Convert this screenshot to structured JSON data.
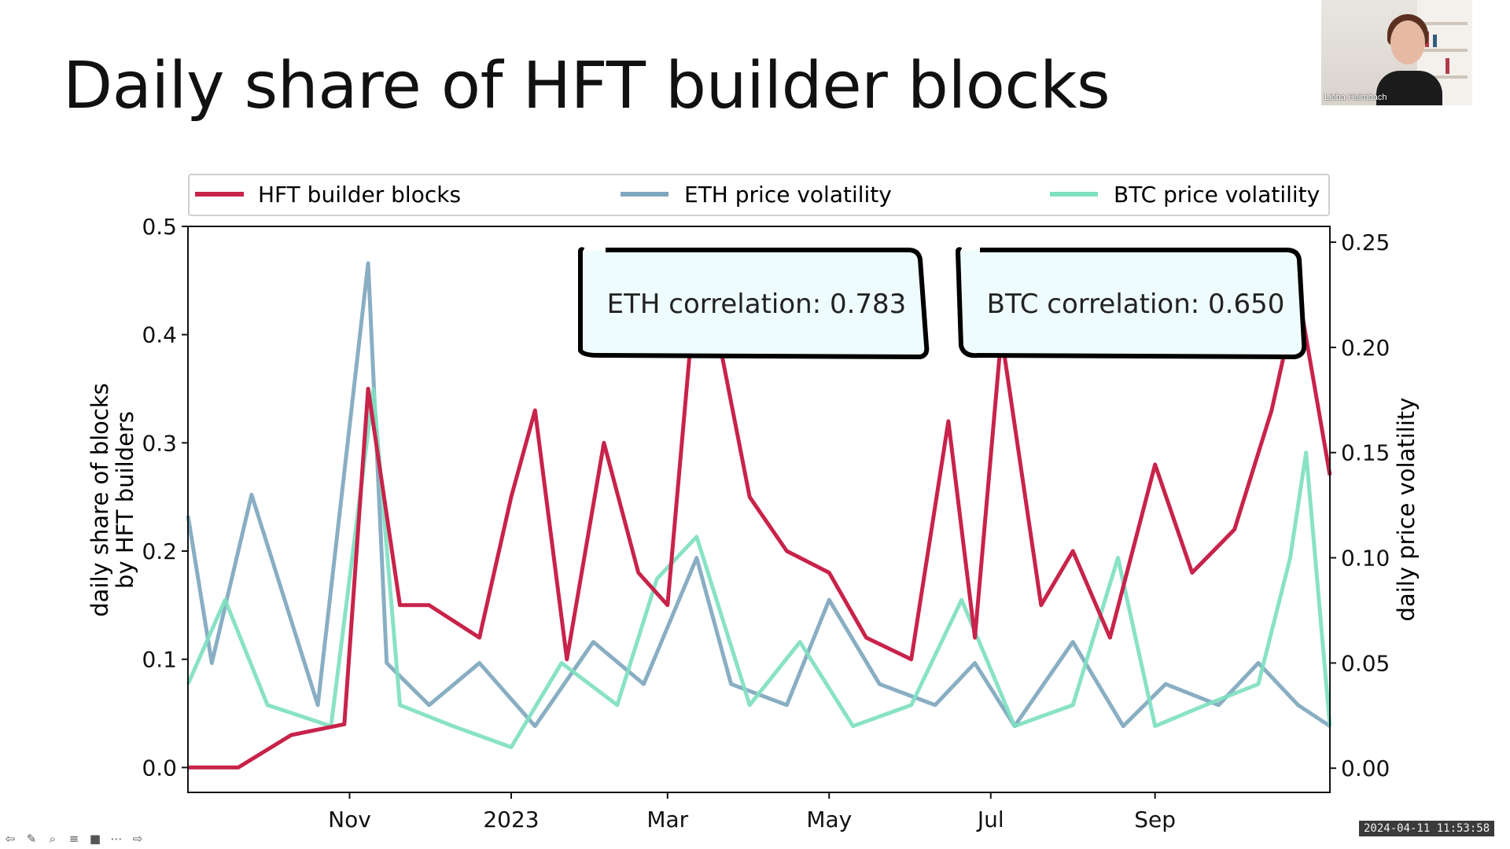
{
  "slide": {
    "title": "Daily share of HFT builder blocks"
  },
  "chart_data": {
    "type": "line",
    "x_ticks": [
      "Nov",
      "2023",
      "Mar",
      "May",
      "Jul",
      "Sep"
    ],
    "x_tick_dates": [
      "2022-11-01",
      "2023-01-01",
      "2023-03-01",
      "2023-05-01",
      "2023-07-01",
      "2023-09-01"
    ],
    "x_range": [
      "2022-09-01",
      "2023-11-06"
    ],
    "ylabel_left": "daily share of blocks by HFT builders",
    "ylabel_left_lines": [
      "daily share of blocks",
      "by HFT builders"
    ],
    "ylabel_right": "daily price volatility",
    "ylim_left": [
      -0.023,
      0.5
    ],
    "ylim_right": [
      -0.0115,
      0.2575
    ],
    "yticks_left": [
      "0.0",
      "0.1",
      "0.2",
      "0.3",
      "0.4",
      "0.5"
    ],
    "yticks_right": [
      "0.00",
      "0.05",
      "0.10",
      "0.15",
      "0.20",
      "0.25"
    ],
    "legend_position": "top, above plot",
    "grid": false,
    "series": [
      {
        "name": "HFT builder blocks",
        "axis": "left",
        "color": "#c8234a",
        "x": [
          "2022-09-01",
          "2022-09-20",
          "2022-10-10",
          "2022-10-30",
          "2022-11-08",
          "2022-11-20",
          "2022-12-01",
          "2022-12-20",
          "2023-01-01",
          "2023-01-10",
          "2023-01-22",
          "2023-02-05",
          "2023-02-18",
          "2023-03-01",
          "2023-03-10",
          "2023-03-20",
          "2023-04-01",
          "2023-04-15",
          "2023-05-01",
          "2023-05-15",
          "2023-06-01",
          "2023-06-15",
          "2023-06-25",
          "2023-07-05",
          "2023-07-20",
          "2023-08-01",
          "2023-08-15",
          "2023-09-01",
          "2023-09-15",
          "2023-10-01",
          "2023-10-15",
          "2023-10-25",
          "2023-11-06"
        ],
        "values": [
          0.0,
          0.0,
          0.03,
          0.04,
          0.35,
          0.15,
          0.15,
          0.12,
          0.25,
          0.33,
          0.1,
          0.3,
          0.18,
          0.15,
          0.4,
          0.4,
          0.25,
          0.2,
          0.18,
          0.12,
          0.1,
          0.32,
          0.12,
          0.4,
          0.15,
          0.2,
          0.12,
          0.28,
          0.18,
          0.22,
          0.33,
          0.44,
          0.27
        ]
      },
      {
        "name": "ETH price volatility",
        "axis": "right",
        "color": "#7fa7be",
        "x": [
          "2022-09-01",
          "2022-09-10",
          "2022-09-25",
          "2022-10-20",
          "2022-11-08",
          "2022-11-15",
          "2022-12-01",
          "2022-12-20",
          "2023-01-10",
          "2023-02-01",
          "2023-02-20",
          "2023-03-12",
          "2023-03-25",
          "2023-04-15",
          "2023-05-01",
          "2023-05-20",
          "2023-06-10",
          "2023-06-25",
          "2023-07-10",
          "2023-08-01",
          "2023-08-20",
          "2023-09-05",
          "2023-09-25",
          "2023-10-10",
          "2023-10-25",
          "2023-11-06"
        ],
        "values": [
          0.12,
          0.05,
          0.13,
          0.03,
          0.24,
          0.05,
          0.03,
          0.05,
          0.02,
          0.06,
          0.04,
          0.1,
          0.04,
          0.03,
          0.08,
          0.04,
          0.03,
          0.05,
          0.02,
          0.06,
          0.02,
          0.04,
          0.03,
          0.05,
          0.03,
          0.02
        ]
      },
      {
        "name": "BTC price volatility",
        "axis": "right",
        "color": "#7fe0c1",
        "x": [
          "2022-09-01",
          "2022-09-15",
          "2022-10-01",
          "2022-10-25",
          "2022-11-10",
          "2022-11-20",
          "2022-12-10",
          "2023-01-01",
          "2023-01-20",
          "2023-02-10",
          "2023-02-25",
          "2023-03-12",
          "2023-04-01",
          "2023-04-20",
          "2023-05-10",
          "2023-06-01",
          "2023-06-20",
          "2023-07-10",
          "2023-08-01",
          "2023-08-18",
          "2023-09-01",
          "2023-09-20",
          "2023-10-10",
          "2023-10-22",
          "2023-10-28",
          "2023-11-06"
        ],
        "values": [
          0.04,
          0.08,
          0.03,
          0.02,
          0.18,
          0.03,
          0.02,
          0.01,
          0.05,
          0.03,
          0.09,
          0.11,
          0.03,
          0.06,
          0.02,
          0.03,
          0.08,
          0.02,
          0.03,
          0.1,
          0.02,
          0.03,
          0.04,
          0.1,
          0.15,
          0.02
        ]
      }
    ],
    "annotations": [
      {
        "text": "ETH correlation: 0.783"
      },
      {
        "text": "BTC correlation: 0.650"
      }
    ]
  },
  "colors": {
    "hft": "#c8234a",
    "eth": "#7fa7be",
    "btc": "#7fe0c1",
    "annotation_fill": "#effcfd"
  },
  "webcam": {
    "name": "Lioba Heimbach"
  },
  "timestamp": "2024-04-11 11:53:58",
  "toolbar": {
    "icons": [
      "back-icon",
      "pen-icon",
      "zoom-icon",
      "captions-icon",
      "camera-icon",
      "more-icon",
      "forward-icon"
    ]
  }
}
